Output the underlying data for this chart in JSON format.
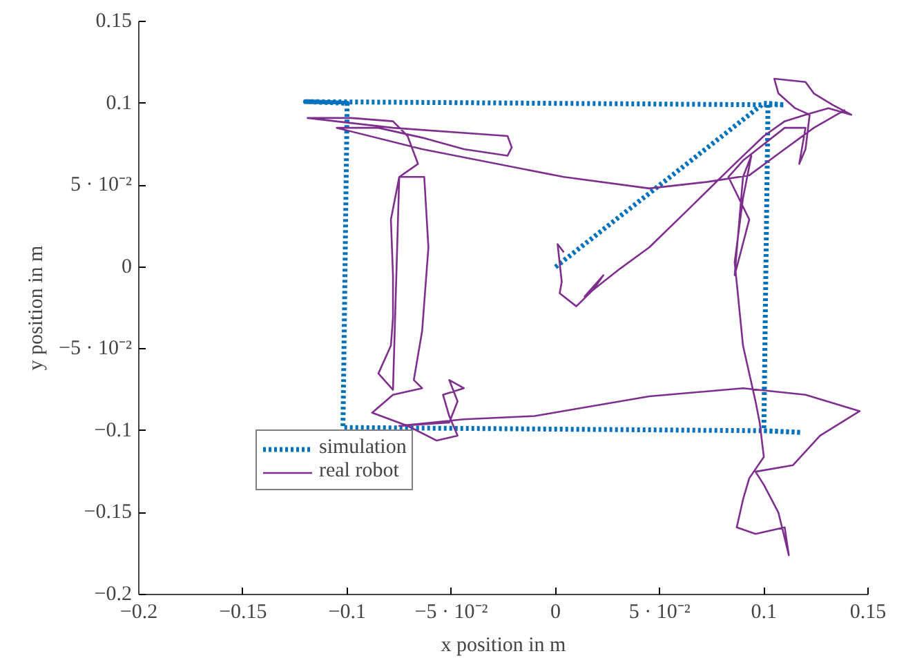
{
  "chart_data": {
    "type": "line",
    "xlabel": "x position in m",
    "ylabel": "y position in m",
    "xlim": [
      -0.2,
      0.15
    ],
    "ylim": [
      -0.2,
      0.15
    ],
    "xticks": [
      {
        "value": -0.2,
        "label": "−0.2"
      },
      {
        "value": -0.15,
        "label": "−0.15"
      },
      {
        "value": -0.1,
        "label": "−0.1"
      },
      {
        "value": -0.05,
        "label": "−5 · 10⁻²"
      },
      0,
      {
        "value": 0.05,
        "label": "5 · 10⁻²"
      },
      0.1,
      0.15
    ],
    "yticks": [
      {
        "value": -0.2,
        "label": "−0.2"
      },
      {
        "value": -0.15,
        "label": "−0.15"
      },
      {
        "value": -0.1,
        "label": "−0.1"
      },
      {
        "value": -0.05,
        "label": "−5 · 10⁻²"
      },
      0,
      {
        "value": 0.05,
        "label": "5 · 10⁻²"
      },
      0.1,
      0.15
    ],
    "grid": false,
    "legend": "bottom left",
    "marker": "none",
    "series": [
      {
        "name": "simulation",
        "color": "#0072bd",
        "line_style": "dotted",
        "x": [
          0,
          0.1,
          0.11,
          -0.12,
          -0.1,
          -0.102,
          0.1,
          0.118,
          0.1,
          0.102,
          0.11
        ],
        "values": [
          0,
          0.1,
          0.099,
          0.101,
          0.1,
          -0.098,
          -0.1,
          -0.101,
          -0.1,
          0.1,
          0.099
        ]
      },
      {
        "name": "real robot",
        "color": "#7e2f8e",
        "line_style": "solid",
        "x": [
          0.004,
          0.001,
          0.003,
          0.002,
          0.01,
          0.018,
          0.023,
          0.014,
          0.031,
          0.045,
          0.066,
          0.086,
          0.1,
          0.11,
          0.12,
          0.131,
          0.142,
          0.133,
          0.124,
          0.12,
          0.105,
          0.107,
          0.115,
          0.122,
          0.12,
          0.117,
          0.12,
          0.11,
          0.09,
          0.083,
          0.093,
          0.086,
          0.09,
          0.094,
          0.09,
          0.086,
          0.09,
          0.096,
          0.098,
          0.1,
          0.093,
          0.09,
          0.087,
          0.096,
          0.11,
          0.112,
          0.107,
          0.1,
          0.096,
          0.114,
          0.127,
          0.146,
          0.12,
          0.09,
          0.045,
          -0.01,
          -0.044,
          -0.075,
          -0.051,
          -0.047,
          -0.051,
          -0.044,
          -0.054,
          -0.051,
          -0.047,
          -0.057,
          -0.071,
          -0.088,
          -0.078,
          -0.064,
          -0.068,
          -0.064,
          -0.061,
          -0.063,
          -0.075,
          -0.079,
          -0.078,
          -0.078,
          -0.079,
          -0.085,
          -0.078,
          -0.075,
          -0.066,
          -0.071,
          -0.078,
          -0.098,
          -0.119,
          -0.078,
          -0.023,
          -0.021,
          -0.023,
          -0.044,
          -0.064,
          -0.085,
          -0.105,
          -0.064,
          0.004,
          0.045,
          0.073,
          0.093,
          0.11,
          0.124,
          0.139
        ],
        "values": [
          0.009,
          0.014,
          -0.009,
          -0.016,
          -0.024,
          -0.014,
          -0.005,
          -0.018,
          -0.001,
          0.012,
          0.038,
          0.063,
          0.08,
          0.089,
          0.093,
          0.097,
          0.093,
          0.099,
          0.106,
          0.113,
          0.115,
          0.106,
          0.097,
          0.093,
          0.072,
          0.063,
          0.085,
          0.085,
          0.065,
          0.055,
          0.029,
          -0.005,
          0.055,
          0.068,
          0.042,
          0.003,
          -0.048,
          -0.082,
          -0.095,
          -0.116,
          -0.129,
          -0.142,
          -0.159,
          -0.163,
          -0.159,
          -0.176,
          -0.15,
          -0.133,
          -0.125,
          -0.121,
          -0.103,
          -0.088,
          -0.078,
          -0.074,
          -0.079,
          -0.091,
          -0.093,
          -0.097,
          -0.095,
          -0.082,
          -0.069,
          -0.074,
          -0.078,
          -0.091,
          -0.103,
          -0.106,
          -0.097,
          -0.089,
          -0.078,
          -0.074,
          -0.069,
          -0.039,
          0.012,
          0.055,
          0.055,
          0.029,
          -0.005,
          -0.031,
          -0.048,
          -0.065,
          -0.075,
          0.055,
          0.063,
          0.08,
          0.089,
          0.091,
          0.091,
          0.085,
          0.08,
          0.073,
          0.068,
          0.072,
          0.079,
          0.085,
          0.085,
          0.072,
          0.055,
          0.048,
          0.052,
          0.056,
          0.072,
          0.085,
          0.096
        ]
      }
    ]
  }
}
